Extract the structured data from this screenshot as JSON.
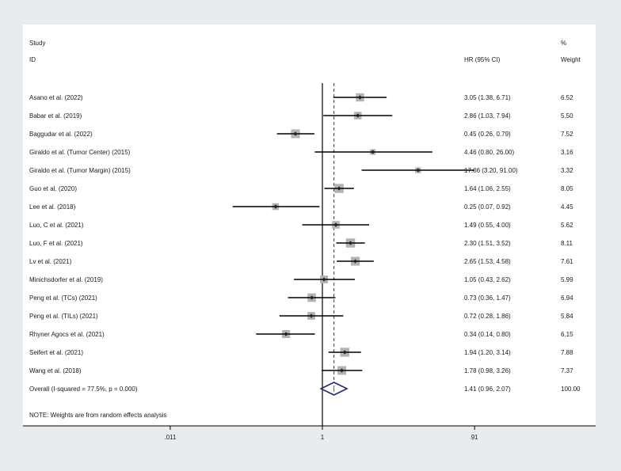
{
  "chart_data": {
    "type": "forest",
    "header": {
      "study_line1": "Study",
      "study_line2": "ID",
      "effect": "HR (95% CI)",
      "weight_line1": "%",
      "weight_line2": "Weight"
    },
    "studies": [
      {
        "id": "Asano et al. (2022)",
        "hr": 3.05,
        "lo": 1.38,
        "hi": 6.71,
        "label": "3.05 (1.38, 6.71)",
        "weight": 6.52,
        "weight_label": "6.52"
      },
      {
        "id": "Babar et al. (2019)",
        "hr": 2.86,
        "lo": 1.03,
        "hi": 7.94,
        "label": "2.86 (1.03, 7.94)",
        "weight": 5.5,
        "weight_label": "5.50"
      },
      {
        "id": "Baggudar et al. (2022)",
        "hr": 0.45,
        "lo": 0.26,
        "hi": 0.79,
        "label": "0.45 (0.26, 0.79)",
        "weight": 7.52,
        "weight_label": "7.52"
      },
      {
        "id": "Giraldo et al. (Tumor Center) (2015)",
        "hr": 4.46,
        "lo": 0.8,
        "hi": 26.0,
        "label": "4.46 (0.80, 26.00)",
        "weight": 3.16,
        "weight_label": "3.16"
      },
      {
        "id": "Giraldo et al. (Tumor Margin) (2015)",
        "hr": 17.06,
        "lo": 3.2,
        "hi": 91.0,
        "label": "17.06 (3.20, 91.00)",
        "weight": 3.32,
        "weight_label": "3.32"
      },
      {
        "id": "Guo et al. (2020)",
        "hr": 1.64,
        "lo": 1.06,
        "hi": 2.55,
        "label": "1.64 (1.06, 2.55)",
        "weight": 8.05,
        "weight_label": "8.05"
      },
      {
        "id": "Lee et al. (2018)",
        "hr": 0.25,
        "lo": 0.07,
        "hi": 0.92,
        "label": "0.25 (0.07, 0.92)",
        "weight": 4.45,
        "weight_label": "4.45"
      },
      {
        "id": "Luo, C et al. (2021)",
        "hr": 1.49,
        "lo": 0.55,
        "hi": 4.0,
        "label": "1.49 (0.55, 4.00)",
        "weight": 5.62,
        "weight_label": "5.62"
      },
      {
        "id": "Luo, F et al. (2021)",
        "hr": 2.3,
        "lo": 1.51,
        "hi": 3.52,
        "label": "2.30 (1.51, 3.52)",
        "weight": 8.11,
        "weight_label": "8.11"
      },
      {
        "id": "Lv et al. (2021)",
        "hr": 2.65,
        "lo": 1.53,
        "hi": 4.58,
        "label": "2.65 (1.53, 4.58)",
        "weight": 7.61,
        "weight_label": "7.61"
      },
      {
        "id": "Minichsdorfer et al. (2019)",
        "hr": 1.05,
        "lo": 0.43,
        "hi": 2.62,
        "label": "1.05 (0.43, 2.62)",
        "weight": 5.99,
        "weight_label": "5.99"
      },
      {
        "id": "Peng et al. (TCs) (2021)",
        "hr": 0.73,
        "lo": 0.36,
        "hi": 1.47,
        "label": "0.73 (0.36, 1.47)",
        "weight": 6.94,
        "weight_label": "6.94"
      },
      {
        "id": "Peng et al. (TILs) (2021)",
        "hr": 0.72,
        "lo": 0.28,
        "hi": 1.86,
        "label": "0.72 (0.28, 1.86)",
        "weight": 5.84,
        "weight_label": "5.84"
      },
      {
        "id": "Rhyner Agocs et al. (2021)",
        "hr": 0.34,
        "lo": 0.14,
        "hi": 0.8,
        "label": "0.34 (0.14, 0.80)",
        "weight": 6.15,
        "weight_label": "6.15"
      },
      {
        "id": "Seifert et al. (2021)",
        "hr": 1.94,
        "lo": 1.2,
        "hi": 3.14,
        "label": "1.94 (1.20, 3.14)",
        "weight": 7.88,
        "weight_label": "7.88"
      },
      {
        "id": "Wang et al. (2018)",
        "hr": 1.78,
        "lo": 0.98,
        "hi": 3.26,
        "label": "1.78 (0.98, 3.26)",
        "weight": 7.37,
        "weight_label": "7.37"
      }
    ],
    "overall": {
      "label": "Overall  (I-squared = 77.5%, p = 0.000)",
      "hr": 1.41,
      "lo": 0.96,
      "hi": 2.07,
      "ci_label": "1.41 (0.96, 2.07)",
      "weight_label": "100.00"
    },
    "note": "NOTE: Weights are from random effects analysis",
    "x_axis": {
      "scale": "log",
      "ticks": [
        0.011,
        1,
        91
      ],
      "tick_labels": [
        ".011",
        "1",
        "91"
      ]
    },
    "colors": {
      "background": "#e6ecf0",
      "panel": "#ffffff",
      "ci_line": "#000000",
      "weight_box": "#b3b3b3",
      "point": "#222222",
      "overall_diamond": "#1f2a6b",
      "overall_line": "#8b1a2b",
      "null_line": "#000000"
    }
  }
}
